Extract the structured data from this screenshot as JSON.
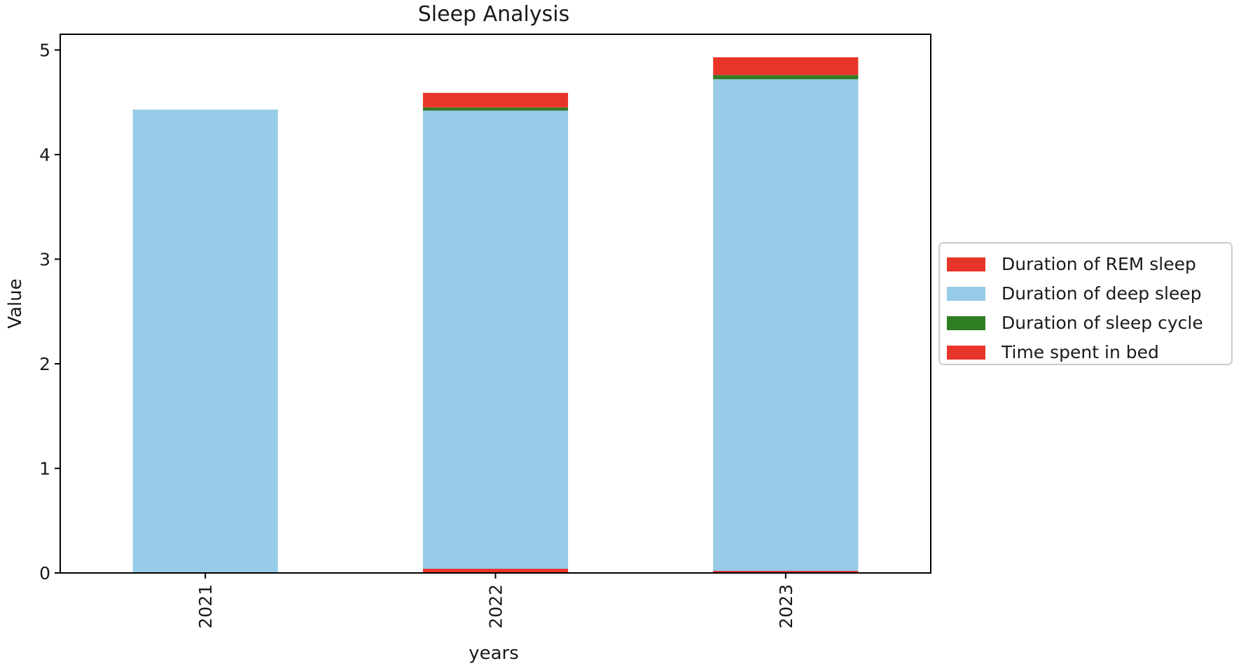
{
  "chart_data": {
    "type": "bar",
    "stacked": true,
    "title": "Sleep Analysis",
    "xlabel": "years",
    "ylabel": "Value",
    "categories": [
      "2021",
      "2022",
      "2023"
    ],
    "ylim": [
      0,
      5.15
    ],
    "yticks": [
      0,
      1,
      2,
      3,
      4,
      5
    ],
    "grid": false,
    "legend_position": "right",
    "series": [
      {
        "name": "Duration of REM sleep",
        "color": "#e8352a",
        "values": [
          0.0,
          0.04,
          0.02
        ]
      },
      {
        "name": "Duration of deep sleep",
        "color": "#98cbe7",
        "values": [
          4.43,
          4.38,
          4.7
        ]
      },
      {
        "name": "Duration of sleep cycle",
        "color": "#2f7d23",
        "values": [
          0.0,
          0.03,
          0.04
        ]
      },
      {
        "name": "Time spent in bed",
        "color": "#e8352a",
        "values": [
          0.0,
          0.14,
          0.17
        ]
      }
    ]
  }
}
